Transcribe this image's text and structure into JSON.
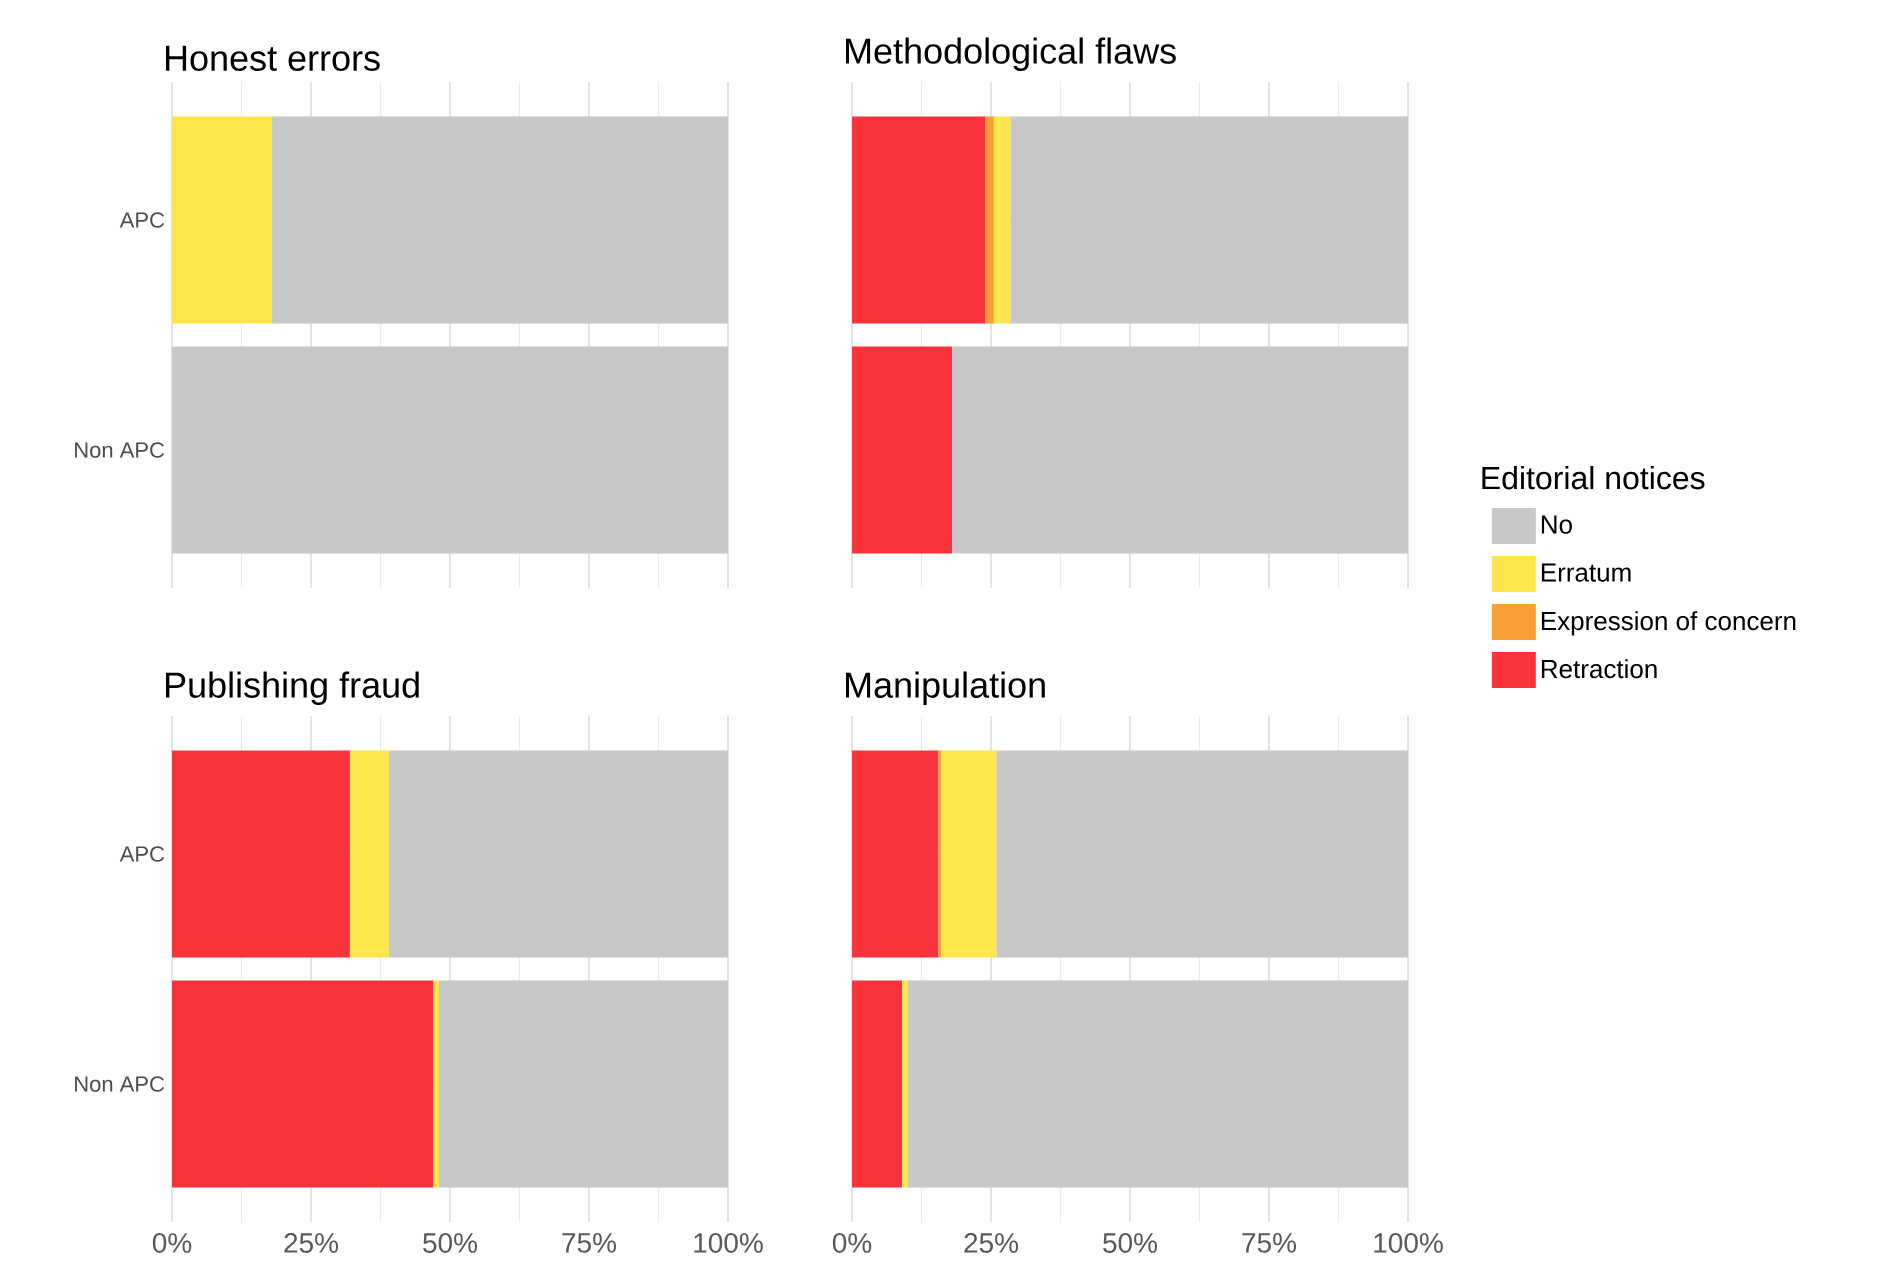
{
  "chart_data": [
    {
      "type": "bar",
      "orientation": "horizontal",
      "stacked": true,
      "title": "Honest errors",
      "categories": [
        "APC",
        "Non APC"
      ],
      "series": [
        {
          "color": "#f8333c",
          "values": [
            null,
            null
          ]
        },
        {
          "color": "#f9a134",
          "values": [
            null,
            null
          ]
        },
        {
          "color": "#fde54e",
          "values": [
            18,
            null
          ]
        },
        {
          "color": "#c8c8c8",
          "values": [
            82,
            100
          ]
        }
      ],
      "xlim": [
        0,
        100
      ],
      "xticks": [
        {
          "value": 0,
          "label": null
        },
        {
          "value": 25,
          "label": null
        },
        {
          "value": 50,
          "label": null
        },
        {
          "value": 75,
          "label": null
        },
        {
          "value": 100,
          "label": null
        }
      ],
      "grid": true,
      "tick_labels": "y"
    },
    {
      "type": "bar",
      "orientation": "horizontal",
      "stacked": true,
      "title": "Methodological flaws",
      "categories": [
        null,
        null
      ],
      "series": [
        {
          "name": "Retraction",
          "color": "#f8333c",
          "values": [
            24,
            18
          ]
        },
        {
          "name": "Expression of concern",
          "color": "#f9a134",
          "values": [
            1.5,
            null
          ]
        },
        {
          "name": "Erratum",
          "color": "#fde54e",
          "values": [
            3,
            null
          ]
        },
        {
          "name": "No",
          "color": "#c8c8c8",
          "values": [
            71.5,
            82
          ]
        }
      ],
      "xlim": [
        0,
        100
      ],
      "xticks": [
        {
          "value": 0,
          "label": null
        },
        {
          "value": 25,
          "label": null
        },
        {
          "value": 50,
          "label": null
        },
        {
          "value": 75,
          "label": null
        },
        {
          "value": 100,
          "label": null
        }
      ],
      "grid": true,
      "tick_labels": false,
      "legend": "right",
      "legend_title": "Editorial notices"
    },
    {
      "type": "bar",
      "orientation": "horizontal",
      "stacked": true,
      "title": "Publishing fraud",
      "categories": [
        "APC",
        "Non APC"
      ],
      "series": [
        {
          "color": "#f8333c",
          "values": [
            32,
            47
          ]
        },
        {
          "color": "#f9a134",
          "values": [
            null,
            null
          ]
        },
        {
          "color": "#fde54e",
          "values": [
            7,
            1
          ]
        },
        {
          "color": "#c8c8c8",
          "values": [
            61,
            52
          ]
        }
      ],
      "xlim": [
        0,
        100
      ],
      "xticks": [
        {
          "value": 0,
          "label": "0%"
        },
        {
          "value": 25,
          "label": "25%"
        },
        {
          "value": 50,
          "label": "50%"
        },
        {
          "value": 75,
          "label": "75%"
        },
        {
          "value": 100,
          "label": "100%"
        }
      ],
      "grid": true
    },
    {
      "type": "bar",
      "orientation": "horizontal",
      "stacked": true,
      "title": "Manipulation",
      "categories": [
        null,
        null
      ],
      "series": [
        {
          "color": "#f8333c",
          "values": [
            15.5,
            9
          ]
        },
        {
          "color": "#f9a134",
          "values": [
            0.5,
            null
          ]
        },
        {
          "color": "#fde54e",
          "values": [
            10,
            1
          ]
        },
        {
          "color": "#c8c8c8",
          "values": [
            74,
            90
          ]
        }
      ],
      "xlim": [
        0,
        100
      ],
      "xticks": [
        {
          "value": 0,
          "label": "0%"
        },
        {
          "value": 25,
          "label": "25%"
        },
        {
          "value": 50,
          "label": "50%"
        },
        {
          "value": 75,
          "label": "75%"
        },
        {
          "value": 100,
          "label": "100%"
        }
      ],
      "grid": true,
      "tick_labels": "x"
    }
  ]
}
